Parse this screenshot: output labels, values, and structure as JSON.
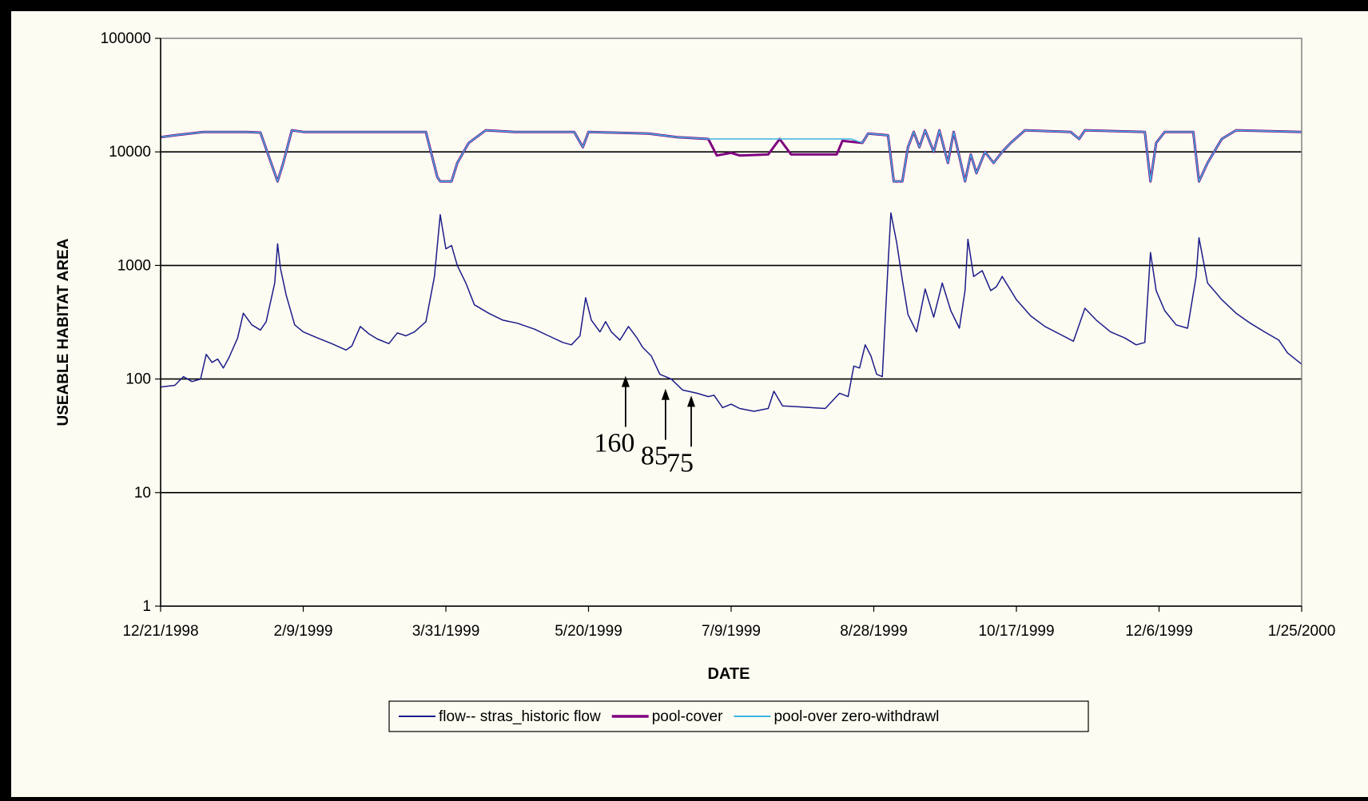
{
  "chart_data": {
    "type": "line",
    "title": "",
    "xlabel": "DATE",
    "ylabel": "USEABLE HABITAT AREA",
    "yscale": "log",
    "ylim": [
      1,
      100000
    ],
    "yticks": [
      "1",
      "10",
      "100",
      "1000",
      "10000",
      "100000"
    ],
    "xlim": [
      "12/21/1998",
      "1/25/2000"
    ],
    "xticks": [
      "12/21/1998",
      "2/9/1999",
      "3/31/1999",
      "5/20/1999",
      "7/9/1999",
      "8/28/1999",
      "10/17/1999",
      "12/6/1999",
      "1/25/2000"
    ],
    "grid": true,
    "legend_position": "bottom",
    "annotations": [
      {
        "text": "160",
        "x": "6/2/1999",
        "y": 100
      },
      {
        "text": "85",
        "x": "6/16/1999",
        "y": 77
      },
      {
        "text": "75",
        "x": "6/25/1999",
        "y": 67
      }
    ],
    "series": [
      {
        "name": "flow-- stras_historic flow",
        "color": "#1c1c8a",
        "width": 1.5,
        "points": [
          [
            "12/21/1998",
            85
          ],
          [
            "12/26/1998",
            88
          ],
          [
            "12/29/1998",
            105
          ],
          [
            "1/1/1999",
            95
          ],
          [
            "1/4/1999",
            100
          ],
          [
            "1/6/1999",
            165
          ],
          [
            "1/8/1999",
            140
          ],
          [
            "1/10/1999",
            150
          ],
          [
            "1/12/1999",
            125
          ],
          [
            "1/14/1999",
            155
          ],
          [
            "1/17/1999",
            230
          ],
          [
            "1/19/1999",
            380
          ],
          [
            "1/22/1999",
            300
          ],
          [
            "1/25/1999",
            270
          ],
          [
            "1/27/1999",
            320
          ],
          [
            "1/30/1999",
            700
          ],
          [
            "1/31/1999",
            1550
          ],
          [
            "2/1/1999",
            950
          ],
          [
            "2/3/1999",
            550
          ],
          [
            "2/6/1999",
            300
          ],
          [
            "2/9/1999",
            260
          ],
          [
            "2/14/1999",
            230
          ],
          [
            "2/19/1999",
            205
          ],
          [
            "2/24/1999",
            180
          ],
          [
            "2/26/1999",
            195
          ],
          [
            "3/1/1999",
            290
          ],
          [
            "3/4/1999",
            250
          ],
          [
            "3/7/1999",
            225
          ],
          [
            "3/11/1999",
            205
          ],
          [
            "3/14/1999",
            255
          ],
          [
            "3/17/1999",
            240
          ],
          [
            "3/20/1999",
            260
          ],
          [
            "3/24/1999",
            320
          ],
          [
            "3/27/1999",
            800
          ],
          [
            "3/29/1999",
            2800
          ],
          [
            "3/31/1999",
            1400
          ],
          [
            "4/2/1999",
            1500
          ],
          [
            "4/4/1999",
            1000
          ],
          [
            "4/7/1999",
            700
          ],
          [
            "4/10/1999",
            450
          ],
          [
            "4/15/1999",
            380
          ],
          [
            "4/20/1999",
            330
          ],
          [
            "4/25/1999",
            310
          ],
          [
            "5/1/1999",
            275
          ],
          [
            "5/6/1999",
            240
          ],
          [
            "5/11/1999",
            210
          ],
          [
            "5/14/1999",
            200
          ],
          [
            "5/17/1999",
            240
          ],
          [
            "5/19/1999",
            520
          ],
          [
            "5/21/1999",
            330
          ],
          [
            "5/24/1999",
            260
          ],
          [
            "5/26/1999",
            320
          ],
          [
            "5/28/1999",
            260
          ],
          [
            "5/31/1999",
            220
          ],
          [
            "6/3/1999",
            290
          ],
          [
            "6/6/1999",
            230
          ],
          [
            "6/8/1999",
            190
          ],
          [
            "6/11/1999",
            160
          ],
          [
            "6/14/1999",
            110
          ],
          [
            "6/18/1999",
            100
          ],
          [
            "6/22/1999",
            80
          ],
          [
            "6/27/1999",
            75
          ],
          [
            "7/1/1999",
            70
          ],
          [
            "7/3/1999",
            72
          ],
          [
            "7/6/1999",
            56
          ],
          [
            "7/9/1999",
            60
          ],
          [
            "7/12/1999",
            55
          ],
          [
            "7/17/1999",
            52
          ],
          [
            "7/22/1999",
            55
          ],
          [
            "7/24/1999",
            78
          ],
          [
            "7/27/1999",
            58
          ],
          [
            "8/1/1999",
            57
          ],
          [
            "8/6/1999",
            56
          ],
          [
            "8/11/1999",
            55
          ],
          [
            "8/16/1999",
            75
          ],
          [
            "8/19/1999",
            70
          ],
          [
            "8/21/1999",
            130
          ],
          [
            "8/23/1999",
            125
          ],
          [
            "8/25/1999",
            200
          ],
          [
            "8/27/1999",
            160
          ],
          [
            "8/29/1999",
            110
          ],
          [
            "8/31/1999",
            105
          ],
          [
            "9/2/1999",
            1000
          ],
          [
            "9/3/1999",
            2900
          ],
          [
            "9/5/1999",
            1600
          ],
          [
            "9/7/1999",
            750
          ],
          [
            "9/9/1999",
            370
          ],
          [
            "9/12/1999",
            260
          ],
          [
            "9/15/1999",
            620
          ],
          [
            "9/18/1999",
            350
          ],
          [
            "9/21/1999",
            700
          ],
          [
            "9/24/1999",
            400
          ],
          [
            "9/27/1999",
            280
          ],
          [
            "9/29/1999",
            600
          ],
          [
            "9/30/1999",
            1700
          ],
          [
            "10/2/1999",
            800
          ],
          [
            "10/5/1999",
            900
          ],
          [
            "10/8/1999",
            600
          ],
          [
            "10/10/1999",
            650
          ],
          [
            "10/12/1999",
            800
          ],
          [
            "10/17/1999",
            500
          ],
          [
            "10/22/1999",
            360
          ],
          [
            "10/27/1999",
            290
          ],
          [
            "11/1/1999",
            250
          ],
          [
            "11/6/1999",
            215
          ],
          [
            "11/10/1999",
            420
          ],
          [
            "11/14/1999",
            330
          ],
          [
            "11/19/1999",
            260
          ],
          [
            "11/24/1999",
            230
          ],
          [
            "11/28/1999",
            200
          ],
          [
            "12/1/1999",
            210
          ],
          [
            "12/3/1999",
            1300
          ],
          [
            "12/5/1999",
            600
          ],
          [
            "12/8/1999",
            400
          ],
          [
            "12/12/1999",
            300
          ],
          [
            "12/16/1999",
            280
          ],
          [
            "12/19/1999",
            800
          ],
          [
            "12/20/1999",
            1750
          ],
          [
            "12/23/1999",
            700
          ],
          [
            "12/28/1999",
            500
          ],
          [
            "1/2/2000",
            380
          ],
          [
            "1/7/2000",
            310
          ],
          [
            "1/12/2000",
            260
          ],
          [
            "1/17/2000",
            220
          ],
          [
            "1/20/2000",
            170
          ],
          [
            "1/25/2000",
            135
          ]
        ]
      },
      {
        "name": "pool-cover",
        "color": "#800080",
        "width": 3,
        "points": [
          [
            "12/21/1998",
            13500
          ],
          [
            "12/26/1998",
            14000
          ],
          [
            "1/5/1999",
            15000
          ],
          [
            "1/20/1999",
            15000
          ],
          [
            "1/25/1999",
            14800
          ],
          [
            "1/28/1999",
            9000
          ],
          [
            "1/31/1999",
            5500
          ],
          [
            "2/2/1999",
            8000
          ],
          [
            "2/5/1999",
            15500
          ],
          [
            "2/9/1999",
            15000
          ],
          [
            "3/24/1999",
            15000
          ],
          [
            "3/28/1999",
            6000
          ],
          [
            "3/29/1999",
            5500
          ],
          [
            "4/2/1999",
            5500
          ],
          [
            "4/4/1999",
            8000
          ],
          [
            "4/8/1999",
            12000
          ],
          [
            "4/14/1999",
            15500
          ],
          [
            "4/24/1999",
            15000
          ],
          [
            "5/15/1999",
            15000
          ],
          [
            "5/18/1999",
            11000
          ],
          [
            "5/20/1999",
            15000
          ],
          [
            "6/10/1999",
            14500
          ],
          [
            "6/20/1999",
            13500
          ],
          [
            "7/1/1999",
            13000
          ],
          [
            "7/4/1999",
            9300
          ],
          [
            "7/9/1999",
            9800
          ],
          [
            "7/12/1999",
            9300
          ],
          [
            "7/22/1999",
            9500
          ],
          [
            "7/26/1999",
            13000
          ],
          [
            "7/30/1999",
            9500
          ],
          [
            "8/15/1999",
            9500
          ],
          [
            "8/17/1999",
            12500
          ],
          [
            "8/24/1999",
            12000
          ],
          [
            "8/26/1999",
            14500
          ],
          [
            "9/2/1999",
            14000
          ],
          [
            "9/4/1999",
            5500
          ],
          [
            "9/7/1999",
            5500
          ],
          [
            "9/9/1999",
            11000
          ],
          [
            "9/11/1999",
            15000
          ],
          [
            "9/13/1999",
            11000
          ],
          [
            "9/15/1999",
            15500
          ],
          [
            "9/18/1999",
            10000
          ],
          [
            "9/20/1999",
            15500
          ],
          [
            "9/23/1999",
            8000
          ],
          [
            "9/25/1999",
            15000
          ],
          [
            "9/29/1999",
            5500
          ],
          [
            "10/1/1999",
            9500
          ],
          [
            "10/3/1999",
            6500
          ],
          [
            "10/6/1999",
            10000
          ],
          [
            "10/9/1999",
            8000
          ],
          [
            "10/12/1999",
            10000
          ],
          [
            "10/15/1999",
            12000
          ],
          [
            "10/20/1999",
            15500
          ],
          [
            "11/5/1999",
            15000
          ],
          [
            "11/8/1999",
            13000
          ],
          [
            "11/10/1999",
            15500
          ],
          [
            "12/1/1999",
            15000
          ],
          [
            "12/3/1999",
            5500
          ],
          [
            "12/5/1999",
            12000
          ],
          [
            "12/8/1999",
            15000
          ],
          [
            "12/18/1999",
            15000
          ],
          [
            "12/20/1999",
            5500
          ],
          [
            "12/23/1999",
            8000
          ],
          [
            "12/28/1999",
            13000
          ],
          [
            "1/2/2000",
            15500
          ],
          [
            "1/25/2000",
            15000
          ]
        ]
      },
      {
        "name": "pool-over zero-withdrawl",
        "color": "#3cb4e0",
        "width": 1.5,
        "points": [
          [
            "12/21/1998",
            13500
          ],
          [
            "12/26/1998",
            14000
          ],
          [
            "1/5/1999",
            15000
          ],
          [
            "1/20/1999",
            15000
          ],
          [
            "1/25/1999",
            14800
          ],
          [
            "1/28/1999",
            9000
          ],
          [
            "1/31/1999",
            5500
          ],
          [
            "2/2/1999",
            8000
          ],
          [
            "2/5/1999",
            15500
          ],
          [
            "2/9/1999",
            15000
          ],
          [
            "3/24/1999",
            15000
          ],
          [
            "3/28/1999",
            6000
          ],
          [
            "3/29/1999",
            5500
          ],
          [
            "4/2/1999",
            5500
          ],
          [
            "4/4/1999",
            8000
          ],
          [
            "4/8/1999",
            12000
          ],
          [
            "4/14/1999",
            15500
          ],
          [
            "4/24/1999",
            15000
          ],
          [
            "5/15/1999",
            15000
          ],
          [
            "5/18/1999",
            11000
          ],
          [
            "5/20/1999",
            15000
          ],
          [
            "6/10/1999",
            14500
          ],
          [
            "6/20/1999",
            13500
          ],
          [
            "7/1/1999",
            13000
          ],
          [
            "8/20/1999",
            13000
          ],
          [
            "8/24/1999",
            12000
          ],
          [
            "8/26/1999",
            14500
          ],
          [
            "9/2/1999",
            14000
          ],
          [
            "9/4/1999",
            5500
          ],
          [
            "9/7/1999",
            5500
          ],
          [
            "9/9/1999",
            11000
          ],
          [
            "9/11/1999",
            15000
          ],
          [
            "9/13/1999",
            11000
          ],
          [
            "9/15/1999",
            15500
          ],
          [
            "9/18/1999",
            10000
          ],
          [
            "9/20/1999",
            15500
          ],
          [
            "9/23/1999",
            8000
          ],
          [
            "9/25/1999",
            15000
          ],
          [
            "9/29/1999",
            5500
          ],
          [
            "10/1/1999",
            9500
          ],
          [
            "10/3/1999",
            6500
          ],
          [
            "10/6/1999",
            10000
          ],
          [
            "10/9/1999",
            8000
          ],
          [
            "10/12/1999",
            10000
          ],
          [
            "10/15/1999",
            12000
          ],
          [
            "10/20/1999",
            15500
          ],
          [
            "11/5/1999",
            15000
          ],
          [
            "11/8/1999",
            13000
          ],
          [
            "11/10/1999",
            15500
          ],
          [
            "12/1/1999",
            15000
          ],
          [
            "12/3/1999",
            5500
          ],
          [
            "12/5/1999",
            12000
          ],
          [
            "12/8/1999",
            15000
          ],
          [
            "12/18/1999",
            15000
          ],
          [
            "12/20/1999",
            5500
          ],
          [
            "12/23/1999",
            8000
          ],
          [
            "12/28/1999",
            13000
          ],
          [
            "1/2/2000",
            15500
          ],
          [
            "1/25/2000",
            15000
          ]
        ]
      }
    ]
  }
}
